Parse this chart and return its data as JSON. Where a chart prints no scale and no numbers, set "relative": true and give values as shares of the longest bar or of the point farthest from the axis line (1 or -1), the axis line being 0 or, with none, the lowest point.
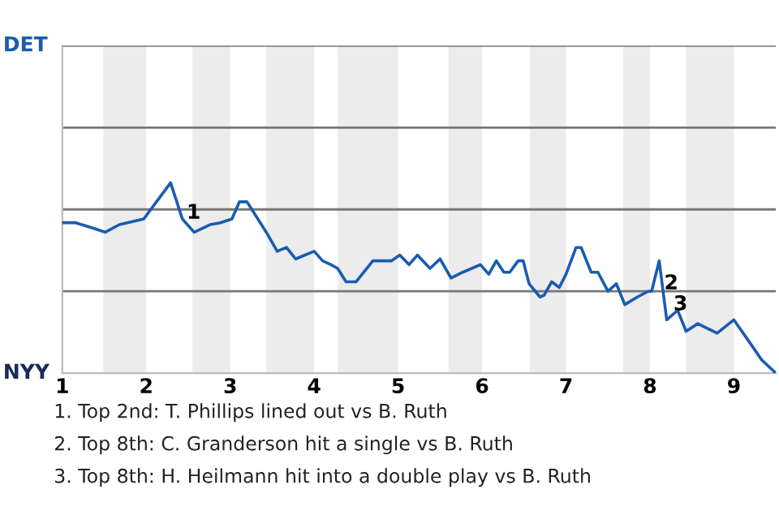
{
  "chart_data": {
    "type": "line",
    "relative": true,
    "x": [
      1,
      1.16,
      1.38,
      1.51,
      1.68,
      1.97,
      2.29,
      2.43,
      2.57,
      2.76,
      2.88,
      3.02,
      3.11,
      3.2,
      3.43,
      3.56,
      3.67,
      3.78,
      4,
      4.1,
      4.2,
      4.28,
      4.38,
      4.5,
      4.7,
      4.92,
      5.02,
      5.13,
      5.23,
      5.38,
      5.5,
      5.63,
      5.77,
      5.98,
      6.08,
      6.17,
      6.26,
      6.33,
      6.43,
      6.49,
      6.56,
      6.69,
      6.74,
      6.83,
      6.92,
      7,
      7.12,
      7.18,
      7.3,
      7.38,
      7.5,
      7.6,
      7.7,
      7.85,
      7.98,
      8.02,
      8.11,
      8.2,
      8.33,
      8.43,
      8.57,
      8.8,
      9,
      9.19,
      9.33,
      9.5
    ],
    "series": [
      {
        "color": "#1a5cb0",
        "values": [
          0.79,
          0.79,
          0.76,
          0.74,
          0.78,
          0.81,
          1,
          0.81,
          0.74,
          0.78,
          0.79,
          0.81,
          0.9,
          0.9,
          0.74,
          0.64,
          0.66,
          0.6,
          0.64,
          0.59,
          0.57,
          0.55,
          0.48,
          0.48,
          0.59,
          0.59,
          0.62,
          0.57,
          0.62,
          0.55,
          0.6,
          0.5,
          0.53,
          0.57,
          0.52,
          0.59,
          0.53,
          0.53,
          0.59,
          0.59,
          0.47,
          0.4,
          0.41,
          0.48,
          0.45,
          0.52,
          0.66,
          0.66,
          0.53,
          0.53,
          0.43,
          0.47,
          0.36,
          0.4,
          0.43,
          0.43,
          0.59,
          0.28,
          0.33,
          0.22,
          0.26,
          0.21,
          0.28,
          0.16,
          0.07,
          0
        ]
      }
    ],
    "xlim": [
      1,
      9.5
    ],
    "xticks": [
      1,
      2,
      3,
      4,
      5,
      6,
      7,
      8,
      9
    ],
    "ref_lines": [
      {
        "axis": "y",
        "value": 0.43,
        "color": "#777777"
      },
      {
        "axis": "y",
        "value": 0.86,
        "color": "#777777"
      },
      {
        "axis": "y",
        "value": 1.29,
        "color": "#777777"
      },
      {
        "axis": "y",
        "value": 1.72,
        "color": "#777777"
      }
    ],
    "bands": [
      {
        "axis": "x",
        "from": 1.49,
        "to": 2,
        "color": "#ececec"
      },
      {
        "axis": "x",
        "from": 2.55,
        "to": 3,
        "color": "#ececec"
      },
      {
        "axis": "x",
        "from": 3.43,
        "to": 4,
        "color": "#ececec"
      },
      {
        "axis": "x",
        "from": 4.28,
        "to": 5,
        "color": "#ececec"
      },
      {
        "axis": "x",
        "from": 5.6,
        "to": 6,
        "color": "#ececec"
      },
      {
        "axis": "x",
        "from": 6.57,
        "to": 7,
        "color": "#ececec"
      },
      {
        "axis": "x",
        "from": 7.68,
        "to": 8,
        "color": "#ececec"
      },
      {
        "axis": "x",
        "from": 8.43,
        "to": 9,
        "color": "#ececec"
      }
    ],
    "annotations": [
      "DET",
      "NYY",
      {
        "text": "1",
        "x": 2.48,
        "y": 0.84
      },
      {
        "text": "2",
        "x": 8.17,
        "y": 0.47
      },
      {
        "text": "3",
        "x": 8.28,
        "y": 0.36
      },
      "1. Top 2nd: T. Phillips lined out vs B. Ruth",
      "2. Top 8th: C. Granderson hit a single vs B. Ruth",
      "3. Top 8th: H. Heilmann hit into a double play vs B. Ruth"
    ]
  }
}
